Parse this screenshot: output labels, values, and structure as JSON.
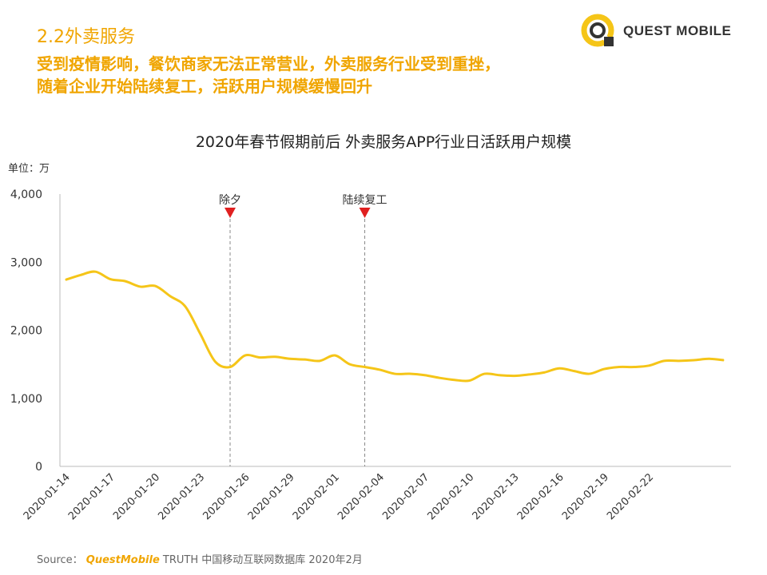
{
  "section_title": "2.2外卖服务",
  "headline": [
    "受到疫情影响，餐饮商家无法正常营业，外卖服务行业受到重挫，",
    "随着企业开始陆续复工，活跃用户规模缓慢回升"
  ],
  "logo": {
    "text": "QUEST MOBILE"
  },
  "colors": {
    "accent": "#f0a500",
    "line": "#f5c518",
    "marker": "#e02020"
  },
  "source": {
    "prefix": "Source：",
    "brand": "QuestMobile",
    "rest": "TRUTH 中国移动互联网数据库 2020年2月"
  },
  "chart_data": {
    "type": "line",
    "title": "2020年春节假期前后 外卖服务APP行业日活跃用户规模",
    "unit_label": "单位：万",
    "ylim": [
      0,
      4000
    ],
    "yticks": [
      0,
      1000,
      2000,
      3000,
      4000
    ],
    "ytick_labels": [
      "0",
      "1,000",
      "2,000",
      "3,000",
      "4,000"
    ],
    "xtick_labels": [
      "2020-01-14",
      "2020-01-17",
      "2020-01-20",
      "2020-01-23",
      "2020-01-26",
      "2020-01-29",
      "2020-02-01",
      "2020-02-04",
      "2020-02-07",
      "2020-02-10",
      "2020-02-13",
      "2020-02-16",
      "2020-02-19",
      "2020-02-22"
    ],
    "series": [
      {
        "name": "日活跃用户规模",
        "values": [
          2740,
          2810,
          2860,
          2750,
          2720,
          2640,
          2650,
          2500,
          2350,
          1950,
          1540,
          1460,
          1630,
          1600,
          1610,
          1580,
          1570,
          1550,
          1630,
          1500,
          1460,
          1420,
          1360,
          1360,
          1340,
          1300,
          1270,
          1260,
          1360,
          1340,
          1330,
          1350,
          1380,
          1440,
          1400,
          1360,
          1430,
          1460,
          1460,
          1480,
          1550,
          1550,
          1560,
          1580,
          1560
        ]
      }
    ],
    "annotations": [
      {
        "label": "除夕",
        "index": 11
      },
      {
        "label": "陆续复工",
        "index": 20
      }
    ]
  }
}
